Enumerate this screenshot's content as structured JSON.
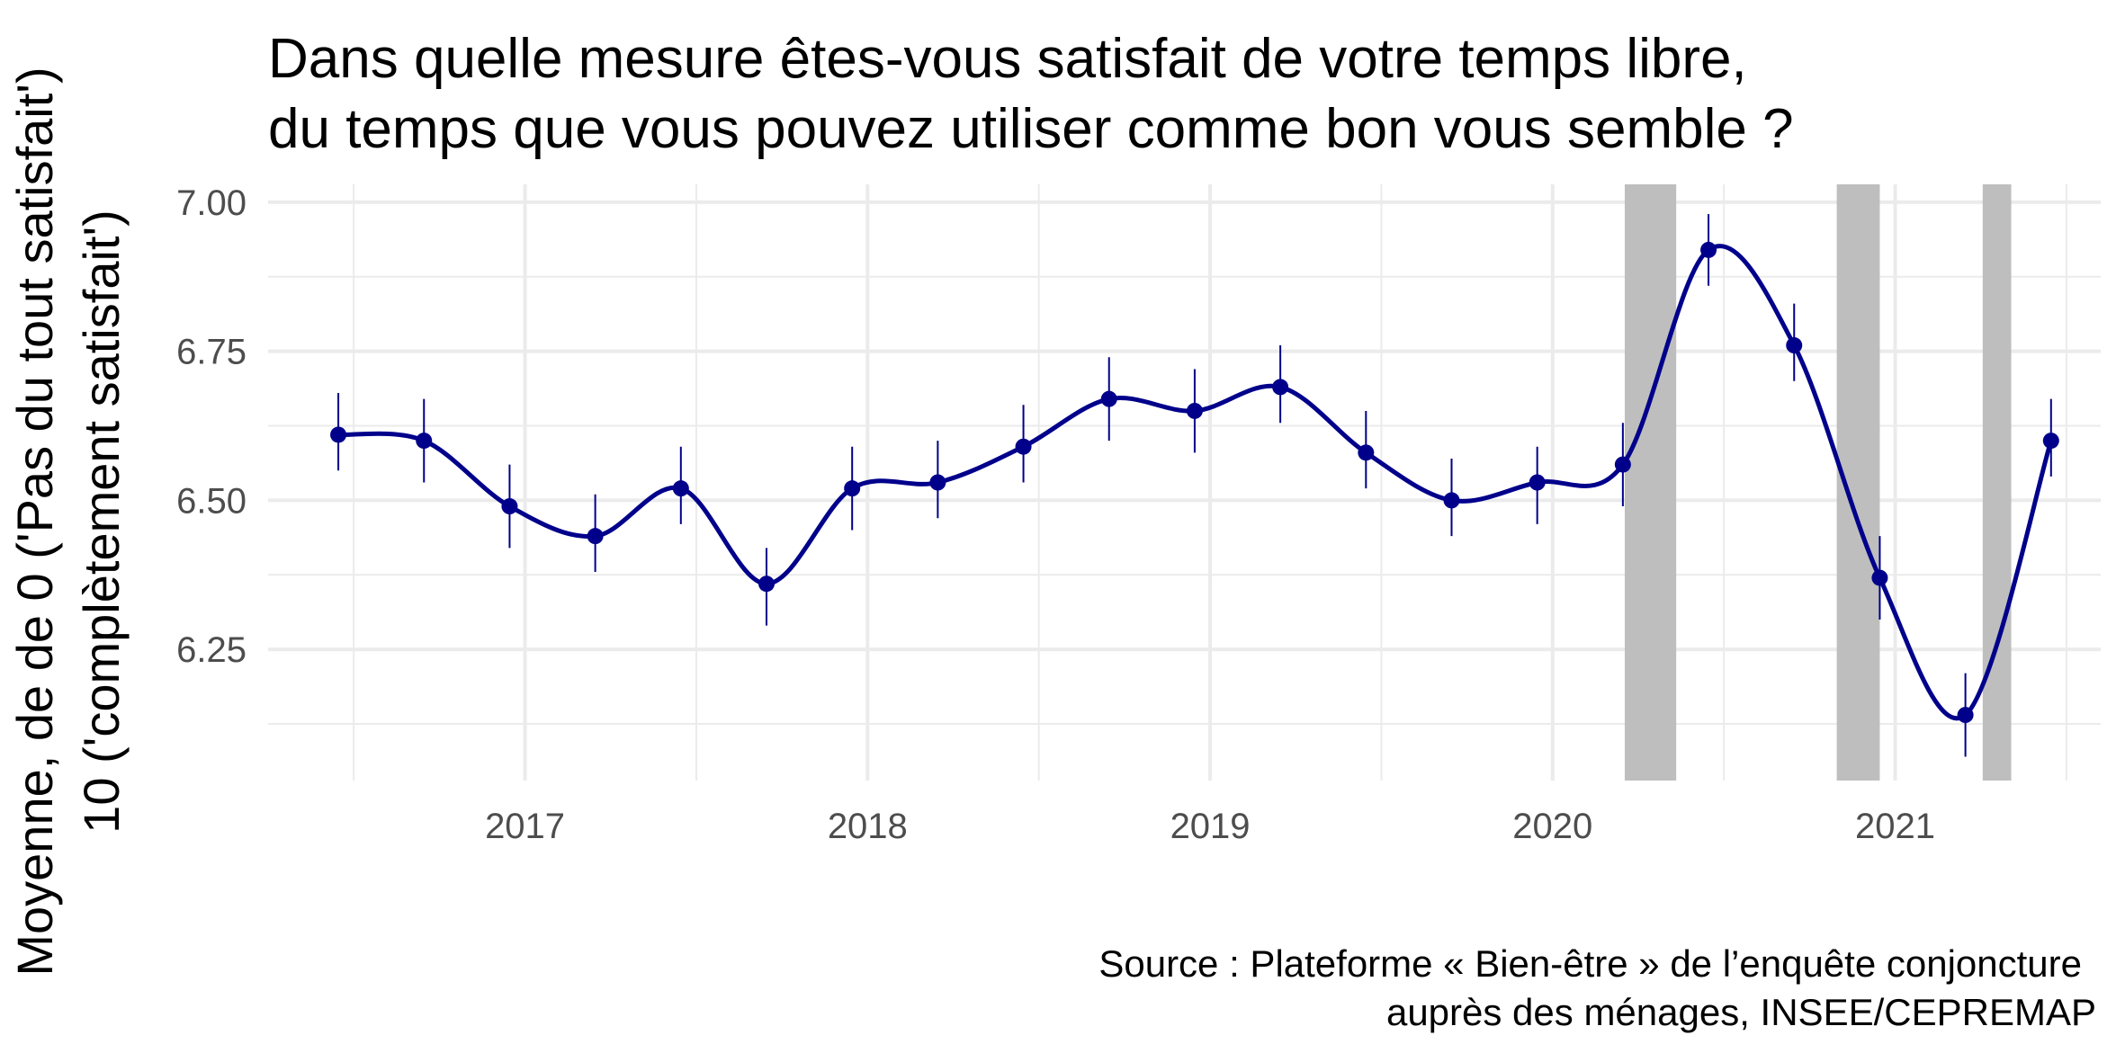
{
  "chart_data": {
    "type": "line",
    "title_lines": [
      "Dans quelle mesure êtes-vous satisfait de votre temps libre,",
      "du temps que vous pouvez utiliser comme bon vous semble ?"
    ],
    "ylabel_lines": [
      "Moyenne, de de 0 ('Pas du tout satisfait')",
      "10 ('complètement satisfait')"
    ],
    "xlabel": "",
    "caption_lines": [
      "Source : Plateforme « Bien-être » de l’enquête conjoncture",
      "auprès des ménages, INSEE/CEPREMAP"
    ],
    "x_ticks": [
      "2017",
      "2018",
      "2019",
      "2020",
      "2021"
    ],
    "y_ticks": [
      "6.25",
      "6.50",
      "6.75",
      "7.00"
    ],
    "ylim": [
      6.03,
      7.03
    ],
    "xlim": [
      2016.25,
      2021.6
    ],
    "grid": true,
    "colors": {
      "line": "#00008B",
      "shade": "#BEBEBE",
      "grid": "#EBEBEB"
    },
    "shaded_periods": [
      {
        "start": "2020-03-17",
        "end": "2020-05-11"
      },
      {
        "start": "2020-10-30",
        "end": "2020-12-15"
      },
      {
        "start": "2021-04-03",
        "end": "2021-05-03"
      }
    ],
    "series": [
      {
        "points": [
          {
            "date": "2016-06",
            "value": 6.61,
            "low": 6.55,
            "high": 6.68
          },
          {
            "date": "2016-09",
            "value": 6.6,
            "low": 6.53,
            "high": 6.67
          },
          {
            "date": "2016-12",
            "value": 6.49,
            "low": 6.42,
            "high": 6.56
          },
          {
            "date": "2017-03",
            "value": 6.44,
            "low": 6.38,
            "high": 6.51
          },
          {
            "date": "2017-06",
            "value": 6.52,
            "low": 6.46,
            "high": 6.59
          },
          {
            "date": "2017-09",
            "value": 6.36,
            "low": 6.29,
            "high": 6.42
          },
          {
            "date": "2017-12",
            "value": 6.52,
            "low": 6.45,
            "high": 6.59
          },
          {
            "date": "2018-03",
            "value": 6.53,
            "low": 6.47,
            "high": 6.6
          },
          {
            "date": "2018-06",
            "value": 6.59,
            "low": 6.53,
            "high": 6.66
          },
          {
            "date": "2018-09",
            "value": 6.67,
            "low": 6.6,
            "high": 6.74
          },
          {
            "date": "2018-12",
            "value": 6.65,
            "low": 6.58,
            "high": 6.72
          },
          {
            "date": "2019-03",
            "value": 6.69,
            "low": 6.63,
            "high": 6.76
          },
          {
            "date": "2019-06",
            "value": 6.58,
            "low": 6.52,
            "high": 6.65
          },
          {
            "date": "2019-09",
            "value": 6.5,
            "low": 6.44,
            "high": 6.57
          },
          {
            "date": "2019-12",
            "value": 6.53,
            "low": 6.46,
            "high": 6.59
          },
          {
            "date": "2020-03",
            "value": 6.56,
            "low": 6.49,
            "high": 6.63
          },
          {
            "date": "2020-06",
            "value": 6.92,
            "low": 6.86,
            "high": 6.98
          },
          {
            "date": "2020-09",
            "value": 6.76,
            "low": 6.7,
            "high": 6.83
          },
          {
            "date": "2020-12",
            "value": 6.37,
            "low": 6.3,
            "high": 6.44
          },
          {
            "date": "2021-03",
            "value": 6.14,
            "low": 6.07,
            "high": 6.21
          },
          {
            "date": "2021-06",
            "value": 6.6,
            "low": 6.54,
            "high": 6.67
          }
        ]
      }
    ]
  }
}
